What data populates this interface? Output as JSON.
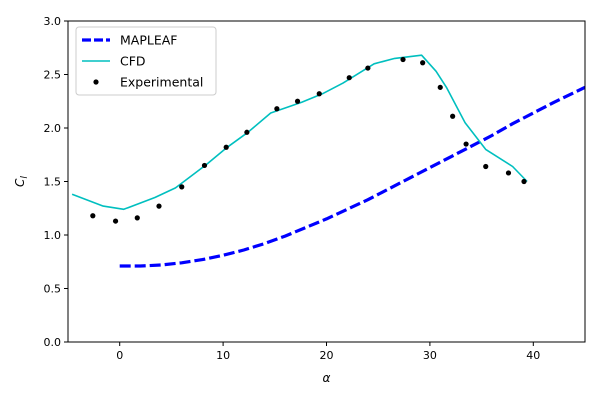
{
  "chart_data": {
    "type": "line",
    "xlabel": "α",
    "ylabel_main": "C",
    "ylabel_sub": "l",
    "xlim": [
      -5,
      45
    ],
    "ylim": [
      0,
      3.0
    ],
    "xticks": [
      0,
      10,
      20,
      30,
      40
    ],
    "xtick_labels": [
      "0",
      "10",
      "20",
      "30",
      "40"
    ],
    "yticks": [
      0,
      0.5,
      1.0,
      1.5,
      2.0,
      2.5,
      3.0
    ],
    "ytick_labels": [
      "0.0",
      "0.5",
      "1.0",
      "1.5",
      "2.0",
      "2.5",
      "3.0"
    ],
    "grid": false,
    "legend_position": "top-left",
    "series": [
      {
        "name": "MAPLEAF",
        "style": "dashed-line",
        "color": "#0000ff",
        "x": [
          0,
          2,
          4,
          6,
          8,
          10,
          12,
          14,
          16,
          18,
          20,
          22,
          24,
          26,
          28,
          30,
          32,
          34,
          36,
          38,
          40,
          42,
          45
        ],
        "y": [
          0.71,
          0.71,
          0.72,
          0.74,
          0.77,
          0.81,
          0.86,
          0.92,
          0.99,
          1.07,
          1.15,
          1.24,
          1.33,
          1.43,
          1.53,
          1.63,
          1.73,
          1.83,
          1.93,
          2.04,
          2.14,
          2.24,
          2.38
        ]
      },
      {
        "name": "CFD",
        "style": "solid-line",
        "color": "#00bfbf",
        "x": [
          -4.6,
          -1.6,
          0.4,
          3.4,
          5.4,
          8.4,
          10.4,
          12.4,
          14.6,
          17.6,
          19.6,
          21.6,
          24.6,
          26.6,
          29.2,
          30.6,
          31.6,
          33.4,
          35.4,
          38.0,
          39.4
        ],
        "y": [
          1.38,
          1.27,
          1.24,
          1.35,
          1.44,
          1.66,
          1.82,
          1.96,
          2.14,
          2.24,
          2.32,
          2.42,
          2.6,
          2.65,
          2.68,
          2.53,
          2.38,
          2.05,
          1.8,
          1.64,
          1.5
        ]
      },
      {
        "name": "Experimental",
        "style": "points",
        "color": "#000000",
        "x": [
          -2.6,
          -0.4,
          1.7,
          3.8,
          6.0,
          8.2,
          10.3,
          12.3,
          15.2,
          17.2,
          19.3,
          22.2,
          24.0,
          27.4,
          29.3,
          31.0,
          32.2,
          33.5,
          35.4,
          37.6,
          39.1
        ],
        "y": [
          1.18,
          1.13,
          1.16,
          1.27,
          1.45,
          1.65,
          1.82,
          1.96,
          2.18,
          2.25,
          2.32,
          2.47,
          2.56,
          2.64,
          2.61,
          2.38,
          2.11,
          1.85,
          1.64,
          1.58,
          1.5
        ]
      }
    ]
  }
}
